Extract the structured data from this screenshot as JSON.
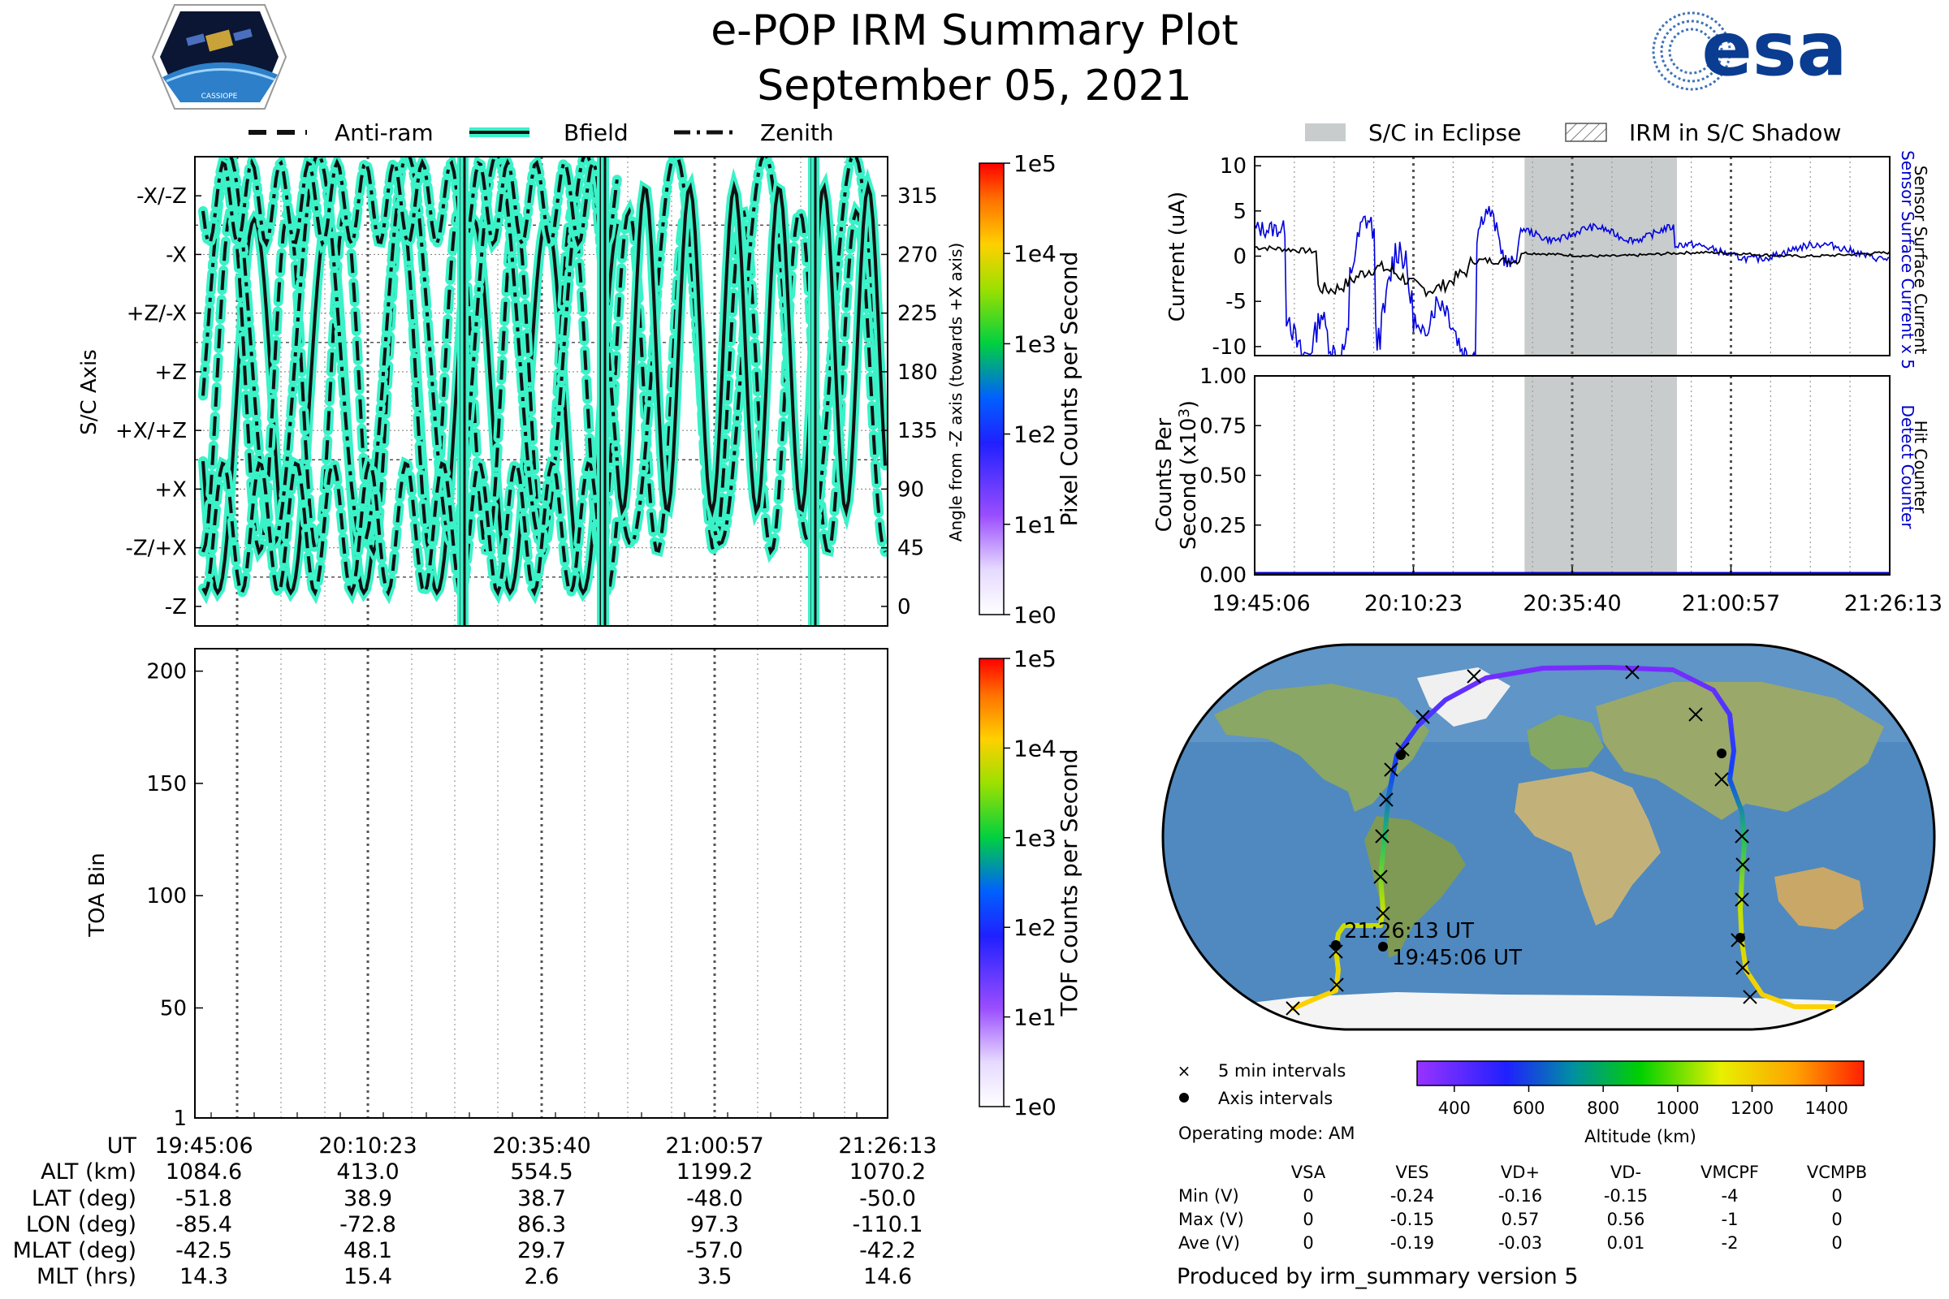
{
  "header": {
    "title": "e-POP IRM Summary Plot",
    "date": "September 05, 2021",
    "left_logo_text": "CASSIOPE",
    "right_logo_text": "esa"
  },
  "legend_top_left": [
    "Anti-ram",
    "Bfield",
    "Zenith"
  ],
  "legend_top_right": [
    "S/C in Eclipse",
    "IRM in S/C Shadow"
  ],
  "colors": {
    "line_glow": "#3af2c8",
    "line_core": "#111111",
    "eclipse_shade": "#c8cccc",
    "current_blue": "#0000dd",
    "detect_blue": "#0000cc",
    "right_label_blue": "#0000cc"
  },
  "chart_data": [
    {
      "type": "line",
      "name": "sc-axis-angle",
      "ylabel": "S/C Axis",
      "y2label": "Angle from -Z axis (towards +X axis)",
      "ytick_labels": [
        "-X/-Z",
        "-X",
        "+Z/-X",
        "+Z",
        "+X/+Z",
        "+X",
        "-Z/+X",
        "-Z"
      ],
      "y2_ticks": [
        315,
        270,
        225,
        180,
        135,
        90,
        45,
        0
      ],
      "ylim": [
        -15,
        345
      ],
      "colorbar": {
        "label": "Pixel Counts per Second",
        "ticks": [
          "1e0",
          "1e1",
          "1e2",
          "1e3",
          "1e4",
          "1e5"
        ]
      },
      "series": [
        {
          "name": "Anti-ram",
          "style": "dashed"
        },
        {
          "name": "Bfield",
          "style": "solid"
        },
        {
          "name": "Zenith",
          "style": "dashdot"
        }
      ]
    },
    {
      "type": "heatmap",
      "name": "toa-bin",
      "ylabel": "TOA Bin",
      "y_ticks": [
        1,
        50,
        100,
        150,
        200
      ],
      "ylim": [
        1,
        210
      ],
      "colorbar": {
        "label": "TOF Counts per Second",
        "ticks": [
          "1e0",
          "1e1",
          "1e2",
          "1e3",
          "1e4",
          "1e5"
        ]
      }
    },
    {
      "type": "line",
      "name": "current",
      "ylabel": "Current (uA)",
      "y_ticks": [
        10,
        5,
        0,
        -5,
        -10
      ],
      "ylim": [
        -11,
        11
      ],
      "right_labels": [
        "Sensor Surface Current x 5",
        "Sensor Surface Current"
      ],
      "series": [
        {
          "name": "Sensor Surface Current x 5",
          "color": "#0000dd"
        },
        {
          "name": "Sensor Surface Current",
          "color": "#000000"
        }
      ],
      "eclipse_range_fraction": [
        0.425,
        0.665
      ]
    },
    {
      "type": "line",
      "name": "counts",
      "ylabel_line1": "Counts Per",
      "ylabel_line2": "Second (x10",
      "ylabel_sup": "3",
      "ylabel_tail": ")",
      "y_ticks": [
        "1.00",
        "0.75",
        "0.50",
        "0.25",
        "0.00"
      ],
      "ylim": [
        0,
        1
      ],
      "right_labels": [
        "Detect Counter",
        "Hit Counter"
      ],
      "x_ticks": [
        "19:45:06",
        "20:10:23",
        "20:35:40",
        "21:00:57",
        "21:26:13"
      ]
    }
  ],
  "ephemeris": {
    "row_labels": [
      "UT",
      "ALT (km)",
      "LAT (deg)",
      "LON (deg)",
      "MLAT (deg)",
      "MLT (hrs)"
    ],
    "columns": [
      [
        "19:45:06",
        "1084.6",
        "-51.8",
        "-85.4",
        "-42.5",
        "14.3"
      ],
      [
        "20:10:23",
        "413.0",
        "38.9",
        "-72.8",
        "48.1",
        "15.4"
      ],
      [
        "20:35:40",
        "554.5",
        "38.7",
        "86.3",
        "29.7",
        "2.6"
      ],
      [
        "21:00:57",
        "1199.2",
        "-48.0",
        "97.3",
        "-57.0",
        "3.5"
      ],
      [
        "21:26:13",
        "1070.2",
        "-50.0",
        "-110.1",
        "-42.2",
        "14.6"
      ]
    ]
  },
  "map": {
    "start_label": "19:45:06 UT",
    "end_label": "21:26:13 UT",
    "legend_5min": "5 min intervals",
    "legend_axis": "Axis intervals",
    "operating_mode": "Operating mode: AM",
    "altitude_ticks": [
      "400",
      "600",
      "800",
      "1000",
      "1200",
      "1400"
    ],
    "altitude_label": "Altitude (km)"
  },
  "voltage_table": {
    "headers": [
      "VSA",
      "VES",
      "VD+",
      "VD-",
      "VMCPF",
      "VCMPB"
    ],
    "rows": [
      {
        "label": "Min (V)",
        "values": [
          "0",
          "-0.24",
          "-0.16",
          "-0.15",
          "-4",
          "0"
        ]
      },
      {
        "label": "Max (V)",
        "values": [
          "0",
          "-0.15",
          "0.57",
          "0.56",
          "-1",
          "0"
        ]
      },
      {
        "label": "Ave (V)",
        "values": [
          "0",
          "-0.19",
          "-0.03",
          "0.01",
          "-2",
          "0"
        ]
      }
    ]
  },
  "footer": "Produced by irm_summary version 5"
}
